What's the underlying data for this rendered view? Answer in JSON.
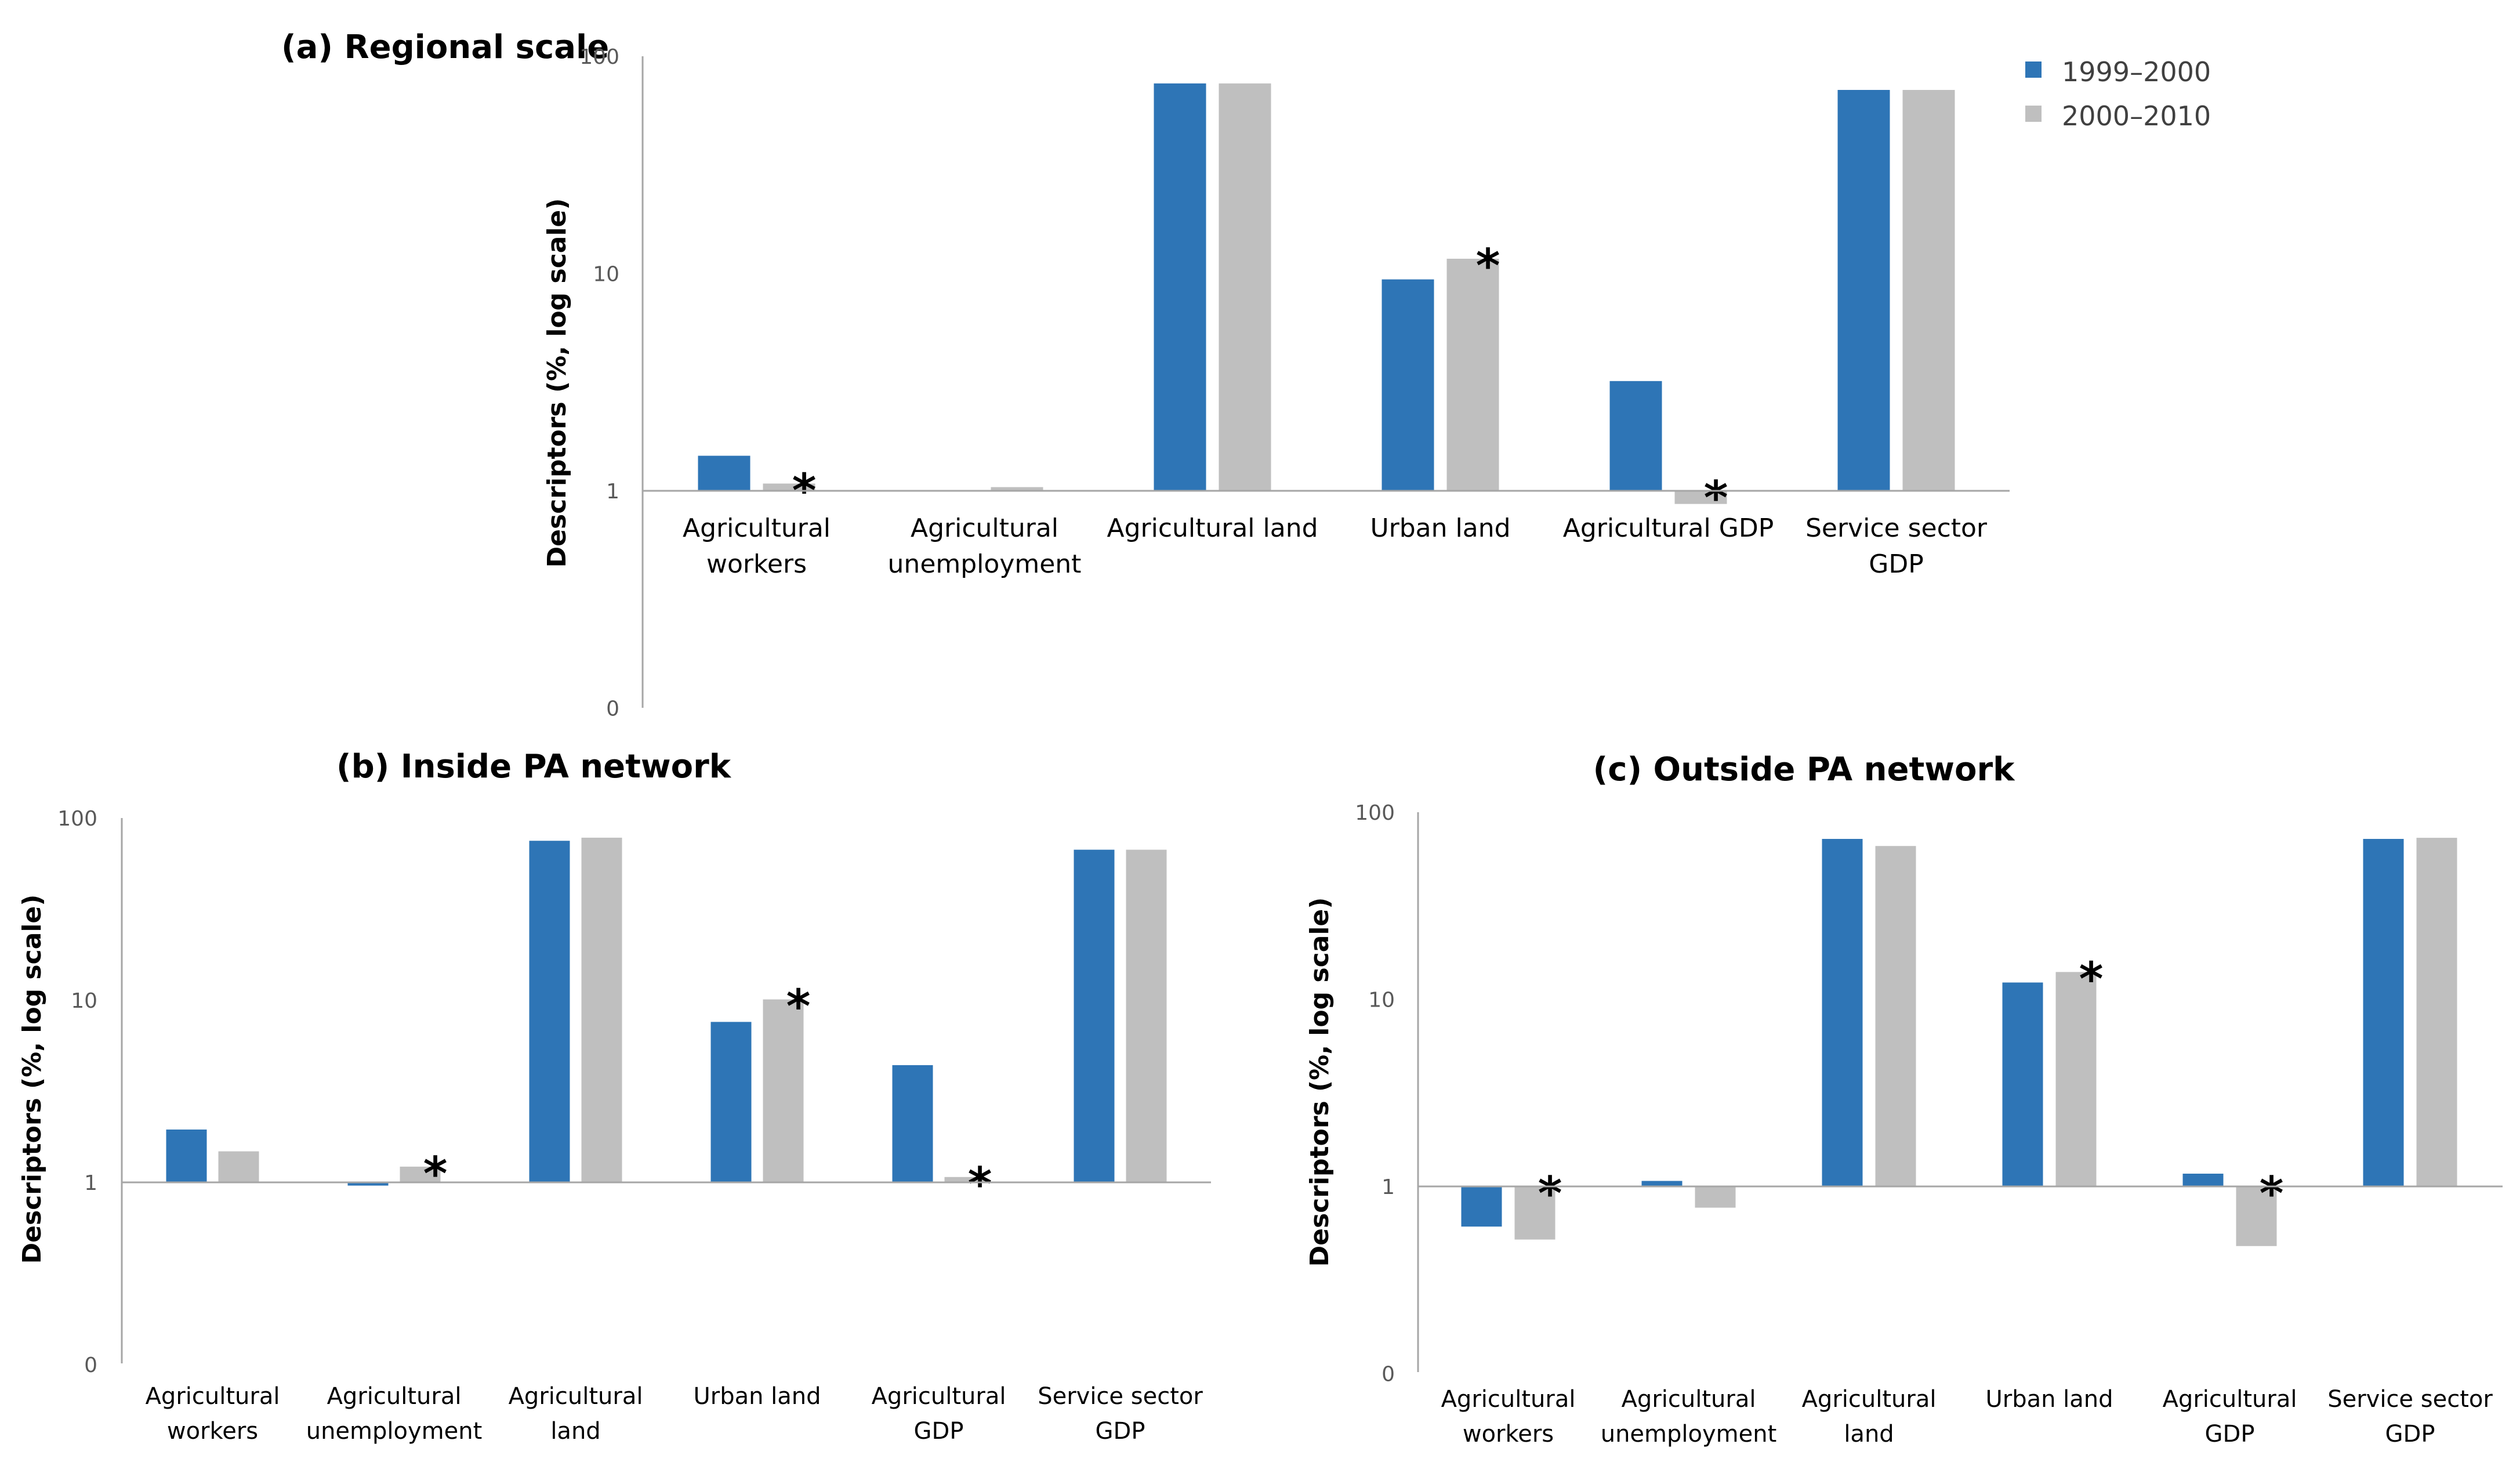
{
  "legend": [
    {
      "name": "1999–2000",
      "color": "#2e75b6"
    },
    {
      "name": "2000–2010",
      "color": "#bfbfbf"
    }
  ],
  "chart_data": [
    {
      "id": "a",
      "type": "bar",
      "title": "(a) Regional scale",
      "ylabel": "Descriptors  (%, log scale)",
      "yscale": "log",
      "ylim": [
        0.1,
        100
      ],
      "yticks": [
        {
          "value": 100,
          "label": "100"
        },
        {
          "value": 10,
          "label": "10"
        },
        {
          "value": 1,
          "label": "1"
        },
        {
          "value": 0.1,
          "label": "0"
        }
      ],
      "categories": [
        [
          "Agricultural",
          "workers"
        ],
        [
          "Agricultural",
          "unemployment"
        ],
        [
          "Agricultural land"
        ],
        [
          "Urban land"
        ],
        [
          "Agricultural GDP"
        ],
        [
          "Service sector",
          "GDP"
        ]
      ],
      "series": [
        {
          "name": "1999–2000",
          "values": [
            1.45,
            null,
            75,
            9.4,
            3.2,
            70
          ]
        },
        {
          "name": "2000–2010",
          "values": [
            1.08,
            1.04,
            75,
            11.7,
            0.87,
            70
          ]
        }
      ],
      "significant": [
        {
          "category": 0,
          "series": 1,
          "label": "*"
        },
        {
          "category": 3,
          "series": 1,
          "label": "*"
        },
        {
          "category": 4,
          "series": 1,
          "label": "*"
        }
      ]
    },
    {
      "id": "b",
      "type": "bar",
      "title": "(b) Inside PA network",
      "ylabel": "Descriptors  (%, log scale)",
      "yscale": "log",
      "ylim": [
        0.1,
        100
      ],
      "yticks": [
        {
          "value": 100,
          "label": "100"
        },
        {
          "value": 10,
          "label": "10"
        },
        {
          "value": 1,
          "label": "1"
        },
        {
          "value": 0.1,
          "label": "0"
        }
      ],
      "categories": [
        [
          "Agricultural",
          "workers"
        ],
        [
          "Agricultural",
          "unemployment"
        ],
        [
          "Agricultural",
          "land"
        ],
        [
          "Urban land"
        ],
        [
          "Agricultural",
          "GDP"
        ],
        [
          "Service sector",
          "GDP"
        ]
      ],
      "series": [
        {
          "name": "1999–2000",
          "values": [
            1.95,
            0.96,
            75,
            7.6,
            4.4,
            67
          ]
        },
        {
          "name": "2000–2010",
          "values": [
            1.48,
            1.22,
            78,
            10.1,
            1.07,
            67
          ]
        }
      ],
      "significant": [
        {
          "category": 1,
          "series": 1,
          "label": "*"
        },
        {
          "category": 3,
          "series": 1,
          "label": "*"
        },
        {
          "category": 4,
          "series": 1,
          "label": "*"
        }
      ]
    },
    {
      "id": "c",
      "type": "bar",
      "title": "(c) Outside PA network",
      "ylabel": "Descriptors  (%, log scale)",
      "yscale": "log",
      "ylim": [
        0.1,
        100
      ],
      "yticks": [
        {
          "value": 100,
          "label": "100"
        },
        {
          "value": 10,
          "label": "10"
        },
        {
          "value": 1,
          "label": "1"
        },
        {
          "value": 0.1,
          "label": "0"
        }
      ],
      "categories": [
        [
          "Agricultural",
          "workers"
        ],
        [
          "Agricultural",
          "unemployment"
        ],
        [
          "Agricultural",
          "land"
        ],
        [
          "Urban land"
        ],
        [
          "Agricultural",
          "GDP"
        ],
        [
          "Service sector",
          "GDP"
        ]
      ],
      "series": [
        {
          "name": "1999–2000",
          "values": [
            0.61,
            1.07,
            72,
            12.3,
            1.17,
            72
          ]
        },
        {
          "name": "2000–2010",
          "values": [
            0.52,
            0.77,
            66,
            14,
            0.48,
            73
          ]
        }
      ],
      "significant": [
        {
          "category": 0,
          "series": 1,
          "label": "*"
        },
        {
          "category": 3,
          "series": 1,
          "label": "*"
        },
        {
          "category": 4,
          "series": 1,
          "label": "*"
        }
      ]
    }
  ]
}
